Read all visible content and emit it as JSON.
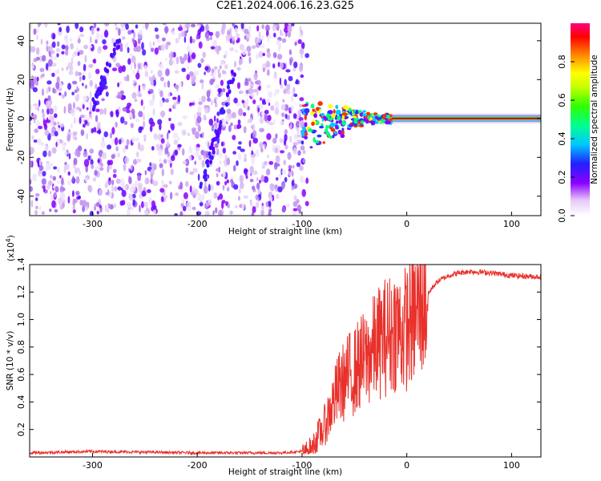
{
  "title": "C2E1.2024.006.16.23.G25",
  "chart_data": [
    {
      "type": "heatmap",
      "name": "spectrogram",
      "xlabel": "Height of straight line (km)",
      "ylabel": "Frequency (Hz)",
      "xlim": [
        -360,
        128
      ],
      "ylim": [
        -50,
        49
      ],
      "xticks": [
        -300,
        -200,
        -100,
        0,
        100
      ],
      "xtick_labels": [
        "-300",
        "-200",
        "-100",
        "0",
        "100"
      ],
      "yticks": [
        -40,
        -20,
        0,
        20,
        40
      ],
      "ytick_labels": [
        "-40",
        "-20",
        "0",
        "20",
        "40"
      ],
      "colorbar": {
        "label": "Normalized spectral amplitude",
        "range": [
          0,
          1
        ],
        "ticks": [
          0,
          0.2,
          0.4,
          0.6,
          0.8
        ],
        "tick_labels": [
          "0.0",
          "0.2",
          "0.4",
          "0.6",
          "0.8"
        ]
      },
      "features": [
        {
          "description": "noise region",
          "x_range": [
            -360,
            -95
          ],
          "y_range": [
            -50,
            49
          ]
        },
        {
          "description": "signal line",
          "x_range": [
            -100,
            128
          ],
          "y": 0
        },
        {
          "description": "diagonal streak",
          "points": [
            [
              -300,
              5
            ],
            [
              -275,
              40
            ]
          ]
        },
        {
          "description": "diagonal streak",
          "points": [
            [
              -195,
              -35
            ],
            [
              -165,
              25
            ]
          ]
        }
      ]
    },
    {
      "type": "line",
      "name": "snr",
      "xlabel": "Height of straight line (km)",
      "ylabel": "SNR (10 * v/v)",
      "scale_label": "(x10",
      "scale_exp": "4",
      "scale_close": ")",
      "color": "#e8312b",
      "xlim": [
        -360,
        128
      ],
      "ylim": [
        0,
        1.4
      ],
      "xticks": [
        -300,
        -200,
        -100,
        0,
        100
      ],
      "xtick_labels": [
        "-300",
        "-200",
        "-100",
        "0",
        "100"
      ],
      "yticks": [
        0.2,
        0.4,
        0.6,
        0.8,
        1.0,
        1.2,
        1.4
      ],
      "ytick_labels": [
        "0.2",
        "0.4",
        "0.6",
        "0.8",
        "1.0",
        "1.2",
        "1.4"
      ],
      "x": [
        -360,
        -300,
        -200,
        -120,
        -100,
        -95,
        -90,
        -85,
        -80,
        -75,
        -70,
        -65,
        -60,
        -55,
        -50,
        -45,
        -40,
        -35,
        -30,
        -25,
        -20,
        -15,
        -10,
        -5,
        0,
        5,
        10,
        15,
        20,
        25,
        30,
        40,
        50,
        60,
        80,
        100,
        128
      ],
      "y": [
        0.03,
        0.04,
        0.03,
        0.03,
        0.04,
        0.05,
        0.08,
        0.15,
        0.2,
        0.3,
        0.4,
        0.5,
        0.55,
        0.6,
        0.62,
        0.68,
        0.7,
        0.75,
        0.8,
        0.85,
        0.88,
        0.9,
        0.95,
        0.9,
        0.95,
        1.0,
        1.05,
        1.12,
        1.18,
        1.24,
        1.28,
        1.32,
        1.34,
        1.35,
        1.34,
        1.32,
        1.31
      ]
    }
  ]
}
